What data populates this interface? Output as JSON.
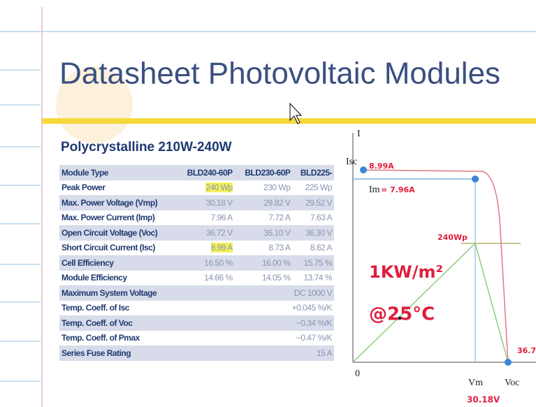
{
  "header": {
    "title": "Datasheet Photovoltaic Modules",
    "subtitle": "Polycrystalline 210W-240W"
  },
  "table": {
    "rows": [
      [
        "Module Type",
        "BLD240-60P",
        "BLD230-60P",
        "BLD225-"
      ],
      [
        "Peak Power",
        "240 Wp",
        "230 Wp",
        "225 Wp"
      ],
      [
        "Max. Power Voltage (Vmp)",
        "30.18 V",
        "29.82 V",
        "29.52 V"
      ],
      [
        "Max. Power Current (Imp)",
        "7.96 A",
        "7.72 A",
        "7.63 A"
      ],
      [
        "Open Circuit Voltage (Voc)",
        "36.72 V",
        "36.10 V",
        "36.30 V"
      ],
      [
        "Short Circuit Current (Isc)",
        "8.99 A",
        "8.73 A",
        "8.62 A"
      ],
      [
        "Cell Efficiency",
        "16.50 %",
        "16.00 %",
        "15.75 %"
      ],
      [
        "Module Efficiency",
        "14.66 %",
        "14.05 %",
        "13.74 %"
      ],
      [
        "Maximum System Voltage",
        "DC 1000 V"
      ],
      [
        "Temp. Coeff. of Isc",
        "+0.045 %/K"
      ],
      [
        "Temp. Coeff. of Voc",
        "−0.34 %/K"
      ],
      [
        "Temp. Coeff. of Pmax",
        "−0.47 %/K"
      ],
      [
        "Series Fuse Rating",
        "15 A"
      ]
    ]
  },
  "graph": {
    "axis_i": "I",
    "origin": "0",
    "isc": "Isc",
    "im": "Im",
    "vm": "Vm",
    "voc": "Voc"
  },
  "notes": {
    "isc_value": "8.99A",
    "im_value": "= 7.96A",
    "power": "240Wp",
    "irradiance": "1KW/m²",
    "temperature": "@25°C",
    "voc_value": "36.7",
    "vm_value": "30.18V"
  }
}
